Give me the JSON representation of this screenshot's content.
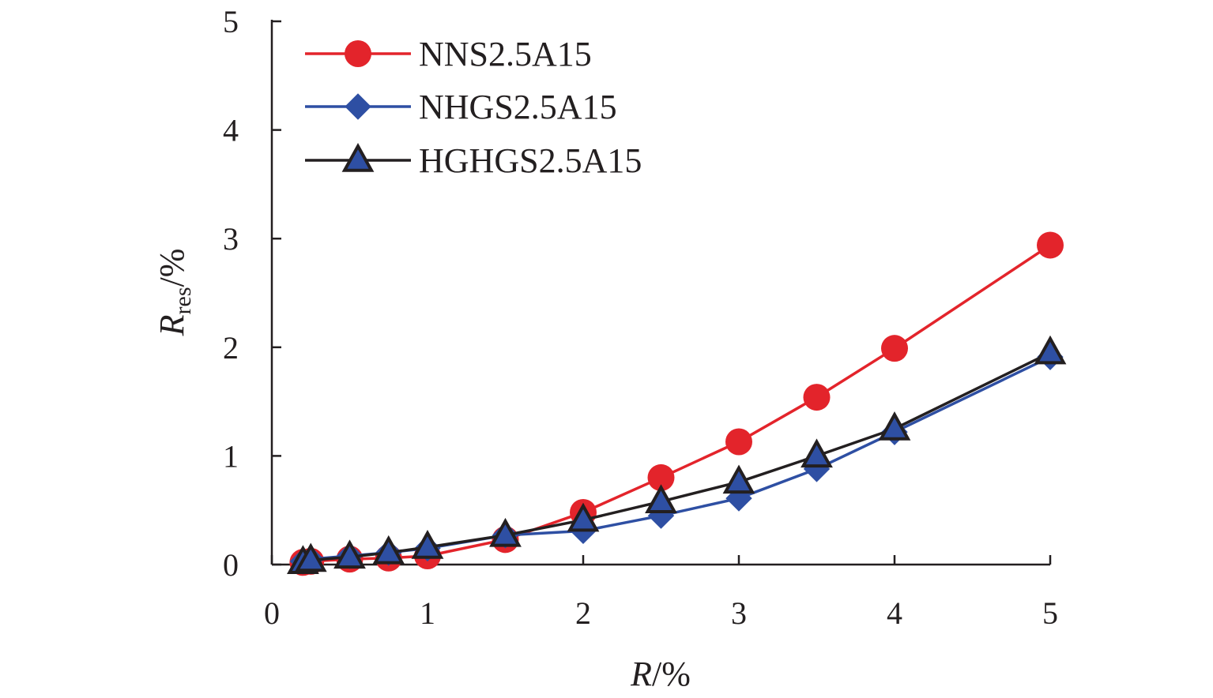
{
  "chart_data": {
    "type": "line",
    "title": "",
    "xlabel_italic": "R",
    "xlabel_rest": "/%",
    "ylabel_italic": "R",
    "ylabel_sub": "res",
    "ylabel_rest": "/%",
    "xlim": [
      0,
      5
    ],
    "ylim": [
      0,
      5
    ],
    "xticks": [
      0,
      1,
      2,
      3,
      4,
      5
    ],
    "yticks": [
      0,
      1,
      2,
      3,
      4,
      5
    ],
    "grid": false,
    "legend_position": "top-left",
    "series": [
      {
        "name": "NNS2.5A15",
        "color": "#e3242b",
        "marker": "circle",
        "x": [
          0.2,
          0.25,
          0.5,
          0.75,
          1.0,
          1.5,
          2.0,
          2.5,
          3.0,
          3.5,
          4.0,
          5.0
        ],
        "y": [
          0.02,
          0.03,
          0.05,
          0.06,
          0.08,
          0.23,
          0.48,
          0.8,
          1.13,
          1.54,
          1.99,
          2.94
        ]
      },
      {
        "name": "NHGS2.5A15",
        "color": "#2e4fa3",
        "marker": "diamond",
        "x": [
          0.2,
          0.25,
          0.5,
          0.75,
          1.0,
          1.5,
          2.0,
          2.5,
          3.0,
          3.5,
          4.0,
          5.0
        ],
        "y": [
          0.03,
          0.05,
          0.08,
          0.11,
          0.15,
          0.27,
          0.31,
          0.45,
          0.61,
          0.88,
          1.22,
          1.91
        ]
      },
      {
        "name": "HGHGS2.5A15",
        "color": "#231f20",
        "marker": "triangle",
        "x": [
          0.2,
          0.25,
          0.5,
          0.75,
          1.0,
          1.5,
          2.0,
          2.5,
          3.0,
          3.5,
          4.0,
          5.0
        ],
        "y": [
          0.02,
          0.04,
          0.07,
          0.11,
          0.16,
          0.27,
          0.41,
          0.58,
          0.76,
          1.0,
          1.25,
          1.95
        ]
      }
    ]
  },
  "marker_fill": {
    "circle": "#e3242b",
    "diamond": "#2e4fa3",
    "triangle": "#2e4fa3"
  }
}
